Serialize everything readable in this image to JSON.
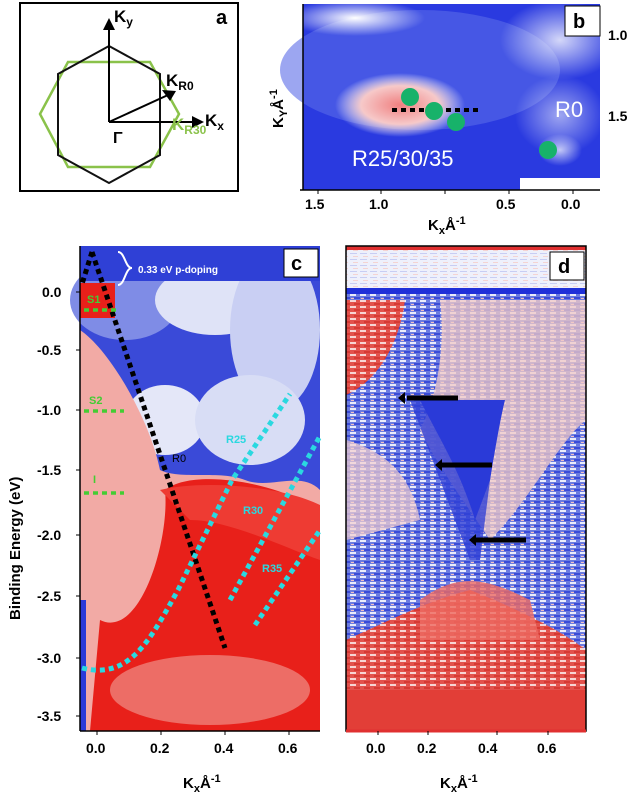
{
  "panel_a": {
    "letter": "a",
    "ky_label": "K",
    "ky_sub": "y",
    "kx_label": "K",
    "kx_sub": "x",
    "kr0_label": "K",
    "kr0_sub": "R0",
    "kr30_label": "K",
    "kr30_sub": "R30",
    "gamma_label": "Γ",
    "colors": {
      "hexagon_r0": "#111111",
      "hexagon_r30": "#8ac24a"
    }
  },
  "panel_b": {
    "letter": "b",
    "ylabel": "K",
    "ylabel_sub": "Y",
    "ylabel_unit": "Å",
    "ylabel_sup": "-1",
    "xlabel": "K",
    "xlabel_sub": "x",
    "xlabel_unit": "Å",
    "xlabel_sup": "-1",
    "x_ticks": [
      "1.5",
      "1.0",
      "0.5",
      "0.0"
    ],
    "y_ticks": [
      "1.0",
      "1.5"
    ],
    "r0_label": "R0",
    "rmix_label": "R25/30/35",
    "colors": {
      "background": "#2a3ae0",
      "dots": "#17b26a"
    }
  },
  "panel_c": {
    "letter": "c",
    "ylabel": "Binding Energy (eV)",
    "xlabel": "K",
    "xlabel_sub": "x",
    "xlabel_unit": "Å",
    "xlabel_sup": "-1",
    "doping_label": "0.33 eV p-doping",
    "x_ticks": [
      "0.0",
      "0.2",
      "0.4",
      "0.6"
    ],
    "y_ticks": [
      "0.0",
      "-0.5",
      "-1.0",
      "-1.5",
      "-2.0",
      "-2.5",
      "-3.0",
      "-3.5"
    ],
    "s1_label": "S1",
    "s2_label": "S2",
    "i_label": "I",
    "r0_label": "R0",
    "r25_label": "R25",
    "r30_label": "R30",
    "r35_label": "R35",
    "colors": {
      "blue": "#2a3ad8",
      "red": "#e8201a",
      "cyan": "#2ad8e0",
      "green": "#44cc33"
    }
  },
  "panel_d": {
    "letter": "d",
    "xlabel": "K",
    "xlabel_sub": "x",
    "xlabel_unit": "Å",
    "xlabel_sup": "-1",
    "x_ticks": [
      "0.0",
      "0.2",
      "0.4",
      "0.6"
    ]
  }
}
